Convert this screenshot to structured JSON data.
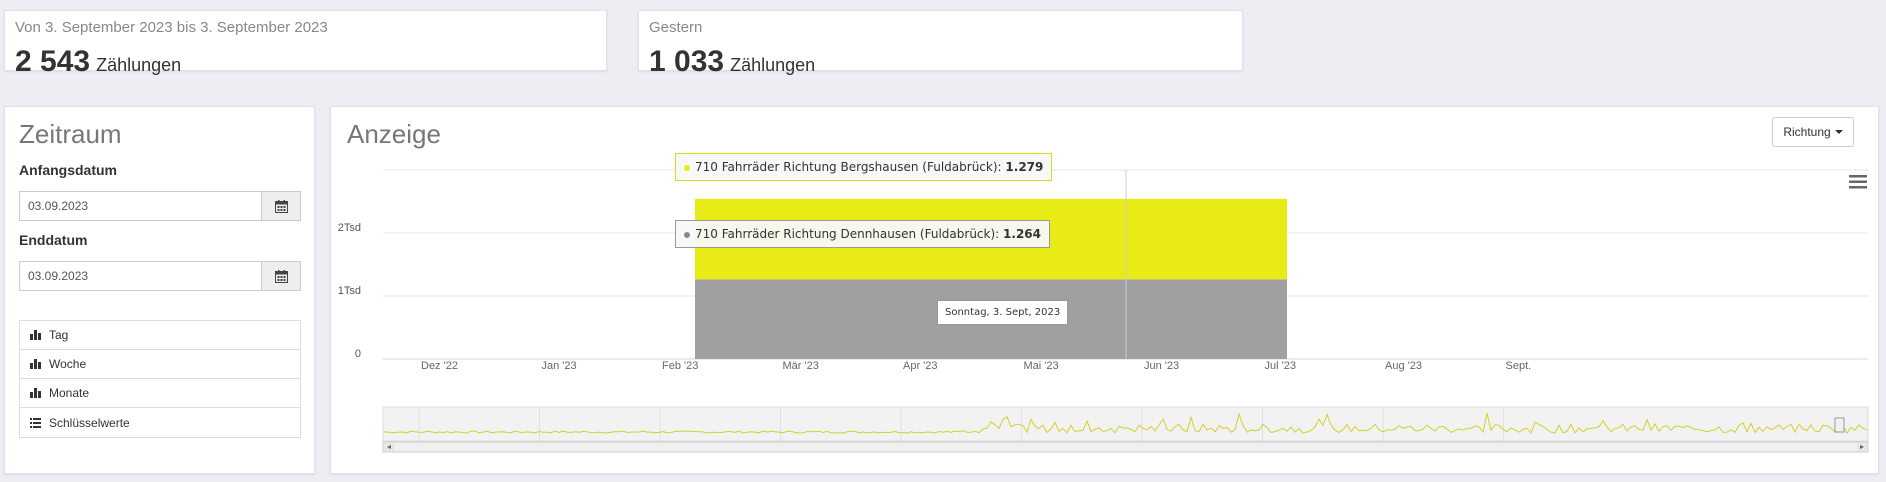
{
  "stats": [
    {
      "label": "Von 3. September 2023 bis 3. September 2023",
      "value": "2 543",
      "unit": "Zählungen"
    },
    {
      "label": "Gestern",
      "value": "1 033",
      "unit": "Zählungen"
    }
  ],
  "zeitraum": {
    "title": "Zeitraum",
    "start_label": "Anfangsdatum",
    "start_value": "03.09.2023",
    "end_label": "Enddatum",
    "end_value": "03.09.2023",
    "options": [
      {
        "label": "Tag",
        "icon": "bar-chart-icon"
      },
      {
        "label": "Woche",
        "icon": "bar-chart-icon"
      },
      {
        "label": "Monate",
        "icon": "bar-chart-icon"
      },
      {
        "label": "Schlüsselwerte",
        "icon": "list-icon"
      }
    ]
  },
  "anzeige": {
    "title": "Anzeige",
    "direction_button": "Richtung",
    "colors": {
      "bergshausen": "#e8ec14",
      "dennhausen": "#a0a0a2"
    }
  },
  "chart_data": {
    "type": "bar",
    "stacked": true,
    "categories": [
      "Sonntag, 3. Sept, 2023"
    ],
    "series": [
      {
        "name": "Fahrräder Richtung Dennhausen (Fuldabrück)",
        "values": [
          1264
        ],
        "color": "#a0a0a2"
      },
      {
        "name": "Fahrräder Richtung Bergshausen (Fuldabrück)",
        "values": [
          1279
        ],
        "color": "#e8ec14"
      }
    ],
    "ylim": [
      0,
      3000
    ],
    "yticks": [
      {
        "value": 0,
        "label": "0"
      },
      {
        "value": 1000,
        "label": "1Tsd"
      },
      {
        "value": 2000,
        "label": "2Tsd"
      }
    ],
    "tooltips": [
      {
        "count": "710",
        "text": "Fahrräder Richtung Bergshausen (Fuldabrück):",
        "value": "1.279",
        "color": "#e8ec14"
      },
      {
        "count": "710",
        "text": "Fahrräder Richtung Dennhausen (Fuldabrück):",
        "value": "1.264",
        "color": "#8a8a8a"
      }
    ],
    "date_tooltip": "Sonntag, 3. Sept, 2023",
    "navigator_labels": [
      "Dez '22",
      "Jan '23",
      "Feb '23",
      "Mär '23",
      "Apr '23",
      "Mai '23",
      "Jun '23",
      "Jul '23",
      "Aug '23",
      "Sept."
    ]
  }
}
